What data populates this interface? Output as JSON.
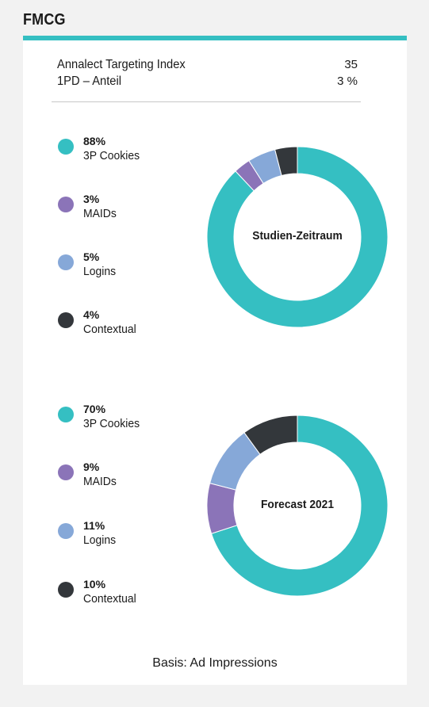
{
  "header": {
    "title": "FMCG"
  },
  "metrics": [
    {
      "label": "Annalect Targeting Index",
      "value": "35"
    },
    {
      "label": "1PD – Anteil",
      "value": "3 %"
    }
  ],
  "colors": {
    "accent": "#35bfc2",
    "3P Cookies": "#35bfc2",
    "MAIDs": "#8b74b8",
    "Logins": "#86a8d8",
    "Contextual": "#33373b"
  },
  "chart_data": [
    {
      "type": "pie",
      "title": "Studien-Zeitraum",
      "labels": [
        "3P Cookies",
        "MAIDs",
        "Logins",
        "Contextual"
      ],
      "values": [
        88,
        3,
        5,
        4
      ],
      "value_labels": [
        "88%",
        "3%",
        "5%",
        "4%"
      ],
      "legend_position": "left"
    },
    {
      "type": "pie",
      "title": "Forecast 2021",
      "labels": [
        "3P Cookies",
        "MAIDs",
        "Logins",
        "Contextual"
      ],
      "values": [
        70,
        9,
        11,
        10
      ],
      "value_labels": [
        "70%",
        "9%",
        "11%",
        "10%"
      ],
      "legend_position": "left"
    }
  ],
  "footer": {
    "note": "Basis: Ad Impressions"
  }
}
